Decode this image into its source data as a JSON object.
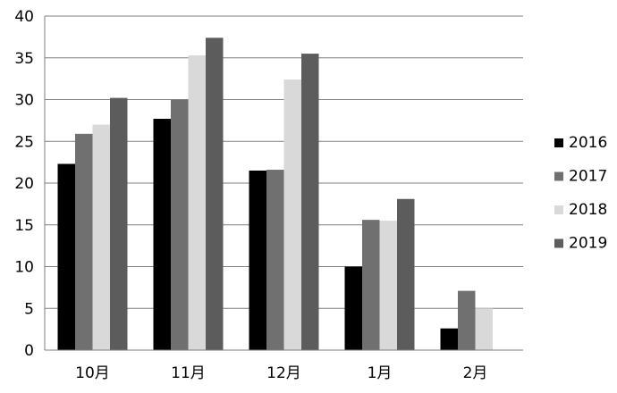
{
  "chart_data": {
    "type": "bar",
    "title": "",
    "xlabel": "",
    "ylabel": "",
    "categories": [
      "10月",
      "11月",
      "12月",
      "1月",
      "2月"
    ],
    "ylim": [
      0,
      40
    ],
    "yticks": [
      0,
      5,
      10,
      15,
      20,
      25,
      30,
      35,
      40
    ],
    "grid": true,
    "legend_position": "right",
    "series": [
      {
        "name": "2016",
        "color": "#000000",
        "values": [
          22.3,
          27.7,
          21.5,
          10.0,
          2.6
        ]
      },
      {
        "name": "2017",
        "color": "#707070",
        "values": [
          25.9,
          30.0,
          21.6,
          15.6,
          7.1
        ]
      },
      {
        "name": "2018",
        "color": "#d9d9d9",
        "values": [
          27.0,
          35.3,
          32.4,
          15.5,
          5.0
        ]
      },
      {
        "name": "2019",
        "color": "#5c5c5c",
        "values": [
          30.2,
          37.4,
          35.5,
          18.1,
          null
        ]
      }
    ]
  }
}
